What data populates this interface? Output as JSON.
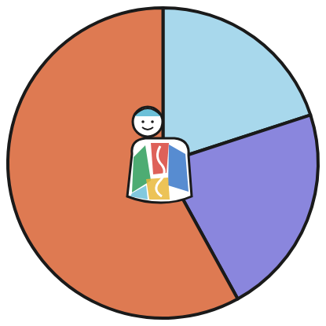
{
  "chart_data": {
    "type": "pie",
    "values": [
      20,
      22,
      58
    ],
    "colors": [
      "#a8d8ec",
      "#8a86dd",
      "#de7a52"
    ]
  }
}
